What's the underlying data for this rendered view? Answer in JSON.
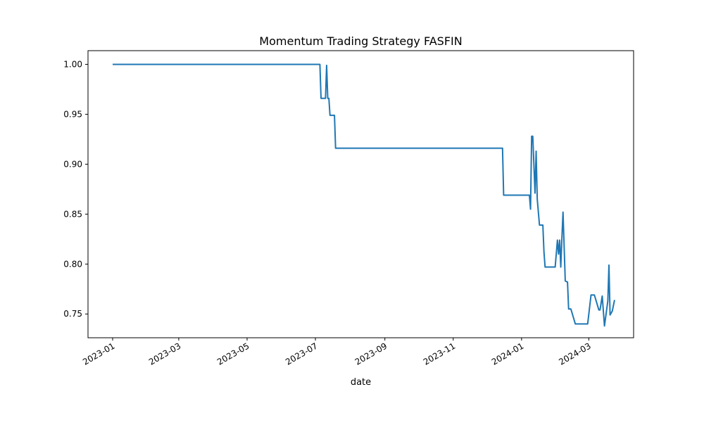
{
  "chart_data": {
    "type": "line",
    "title": "Momentum Trading Strategy FASFIN",
    "xlabel": "date",
    "ylabel": "",
    "xlim": [
      "2022-12-10",
      "2024-04-10"
    ],
    "ylim": [
      0.7262,
      1.0137
    ],
    "grid": false,
    "legend": "none",
    "line_color": "#1f77b4",
    "x_ticks": [
      {
        "value": "2023-01-01",
        "label": "2023-01"
      },
      {
        "value": "2023-03-01",
        "label": "2023-03"
      },
      {
        "value": "2023-05-01",
        "label": "2023-05"
      },
      {
        "value": "2023-07-01",
        "label": "2023-07"
      },
      {
        "value": "2023-09-01",
        "label": "2023-09"
      },
      {
        "value": "2023-11-01",
        "label": "2023-11"
      },
      {
        "value": "2024-01-01",
        "label": "2024-01"
      },
      {
        "value": "2024-03-01",
        "label": "2024-03"
      }
    ],
    "y_ticks": [
      {
        "value": 0.75,
        "label": "0.75"
      },
      {
        "value": 0.8,
        "label": "0.80"
      },
      {
        "value": 0.85,
        "label": "0.85"
      },
      {
        "value": 0.9,
        "label": "0.90"
      },
      {
        "value": 0.95,
        "label": "0.95"
      },
      {
        "value": 1.0,
        "label": "1.00"
      }
    ],
    "series": [
      {
        "x": [
          "2023-01-01",
          "2023-07-05",
          "2023-07-06",
          "2023-07-10",
          "2023-07-11",
          "2023-07-12",
          "2023-07-13",
          "2023-07-14",
          "2023-07-18",
          "2023-07-19",
          "2023-12-15",
          "2023-12-16",
          "2024-01-08",
          "2024-01-09",
          "2024-01-10",
          "2024-01-11",
          "2024-01-13",
          "2024-01-14",
          "2024-01-15",
          "2024-01-17",
          "2024-01-20",
          "2024-01-21",
          "2024-01-22",
          "2024-01-31",
          "2024-02-02",
          "2024-02-03",
          "2024-02-04",
          "2024-02-05",
          "2024-02-06",
          "2024-02-07",
          "2024-02-09",
          "2024-02-11",
          "2024-02-12",
          "2024-02-13",
          "2024-02-14",
          "2024-02-18",
          "2024-02-19",
          "2024-02-29",
          "2024-03-03",
          "2024-03-06",
          "2024-03-10",
          "2024-03-11",
          "2024-03-13",
          "2024-03-15",
          "2024-03-18",
          "2024-03-19",
          "2024-03-20",
          "2024-03-22",
          "2024-03-24"
        ],
        "y": [
          1.0,
          1.0,
          0.966,
          0.966,
          0.999,
          0.966,
          0.966,
          0.949,
          0.949,
          0.916,
          0.916,
          0.869,
          0.869,
          0.855,
          0.928,
          0.928,
          0.871,
          0.913,
          0.865,
          0.839,
          0.839,
          0.812,
          0.797,
          0.797,
          0.824,
          0.81,
          0.824,
          0.797,
          0.826,
          0.852,
          0.783,
          0.782,
          0.755,
          0.755,
          0.755,
          0.74,
          0.74,
          0.74,
          0.769,
          0.769,
          0.754,
          0.754,
          0.768,
          0.738,
          0.763,
          0.799,
          0.749,
          0.753,
          0.764
        ]
      }
    ]
  }
}
